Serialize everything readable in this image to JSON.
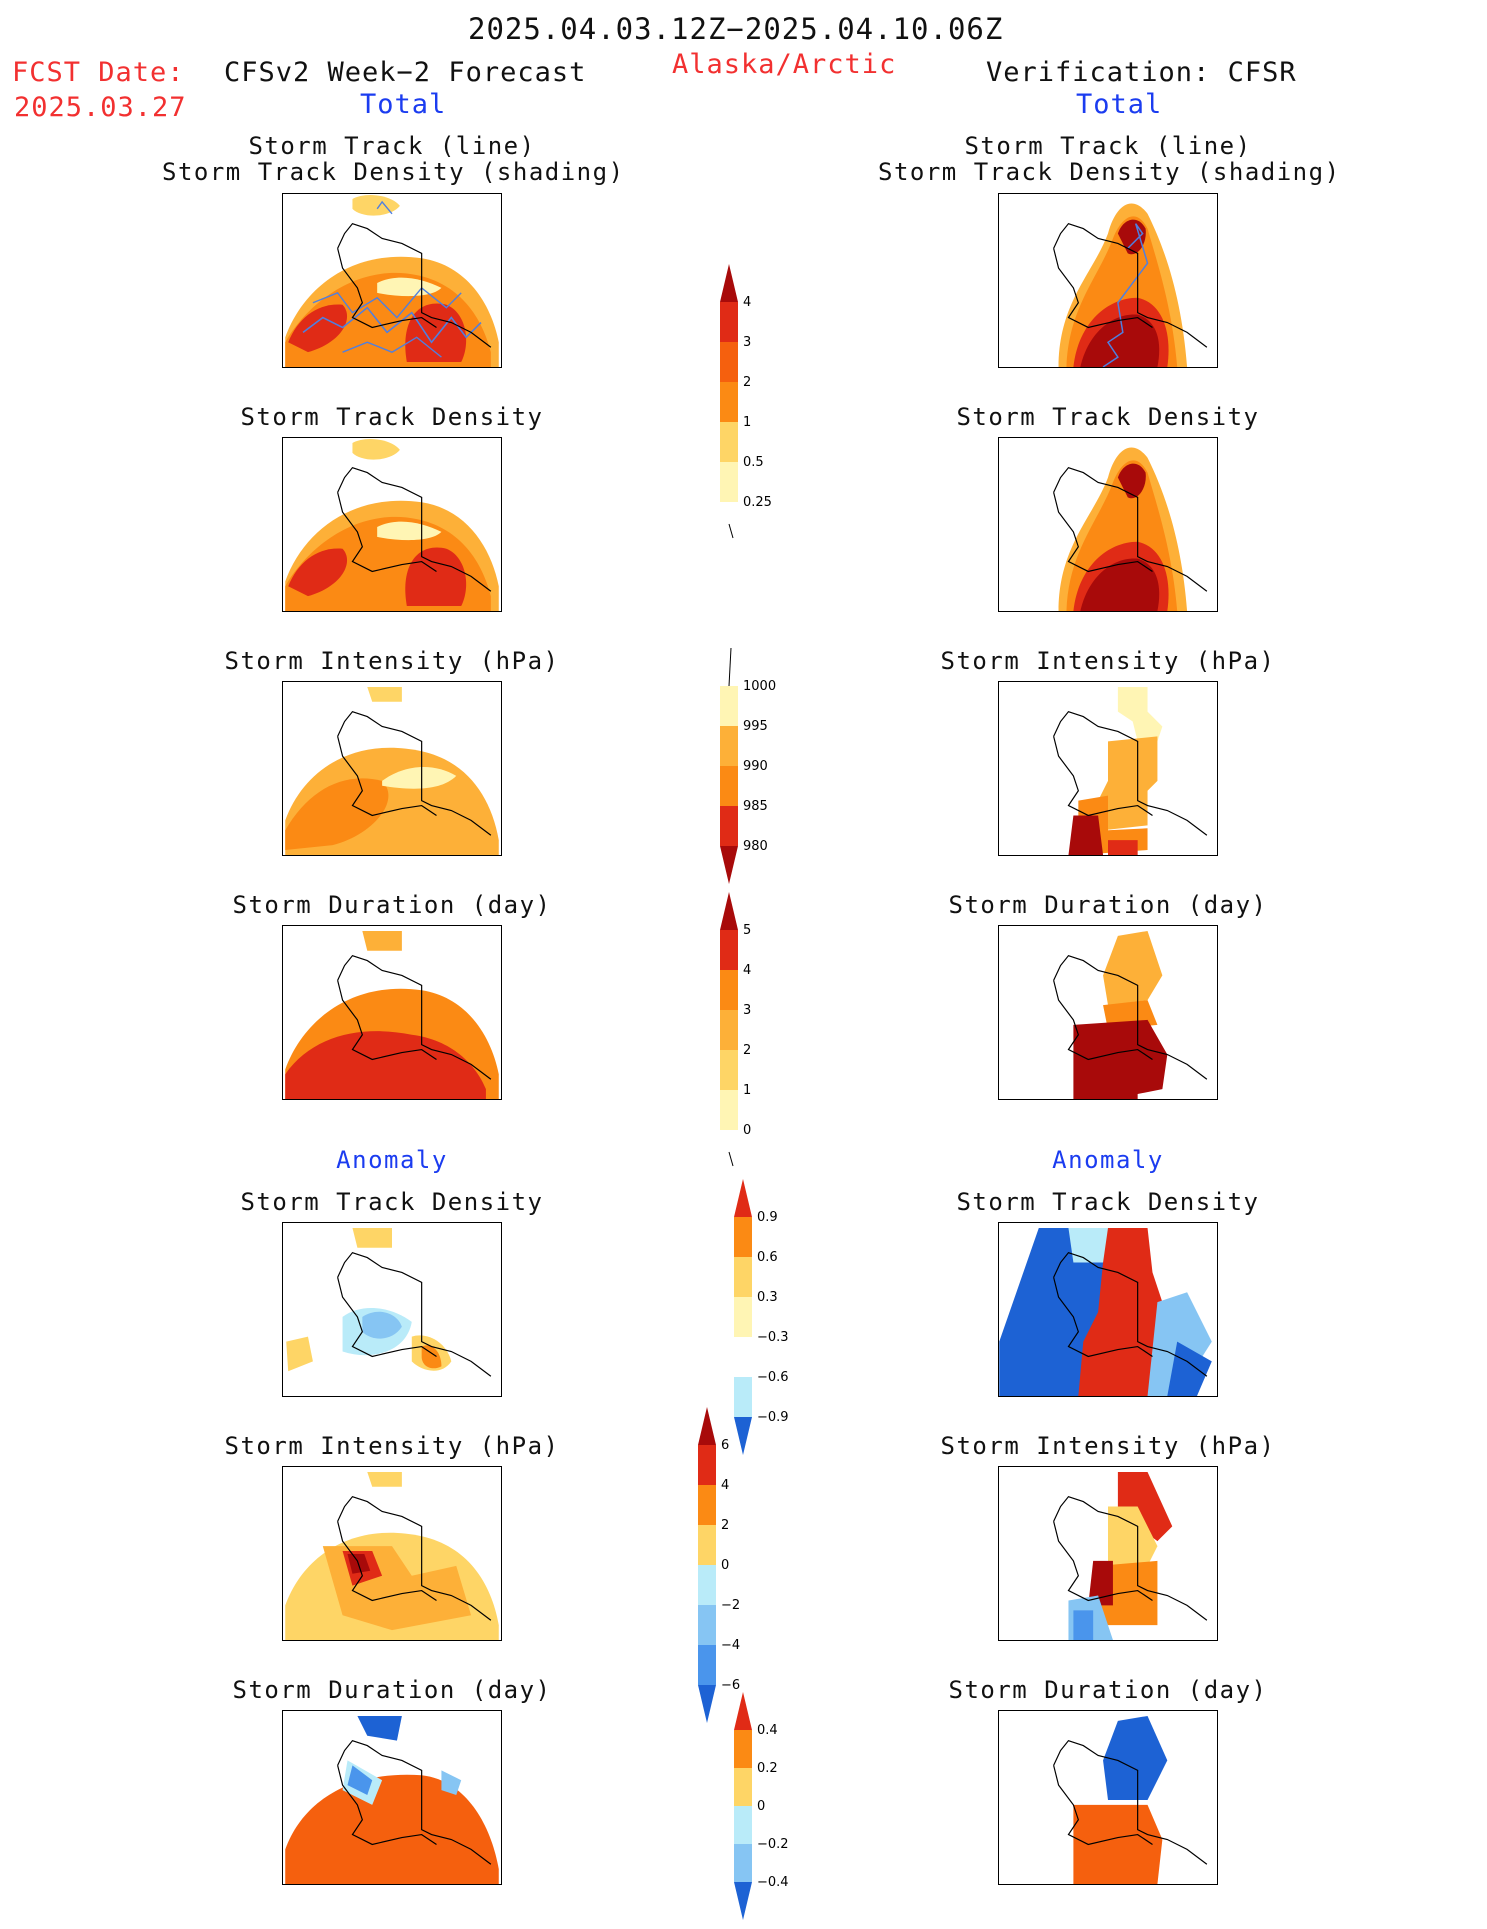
{
  "header": {
    "date_range": "2025.04.03.12Z−2025.04.10.06Z",
    "fcst_label": "FCST Date:",
    "fcst_date": "2025.03.27",
    "forecast_title": "CFSv2 Week−2 Forecast",
    "region": "Alaska/Arctic",
    "verification_title": "Verification: CFSR",
    "left_total": "Total",
    "right_total": "Total",
    "left_anomaly": "Anomaly",
    "right_anomaly": "Anomaly"
  },
  "panels": {
    "storm_track_line": "Storm Track (line)",
    "storm_track_shading": "Storm Track Density (shading)",
    "track_density": "Storm Track Density",
    "intensity": "Storm Intensity (hPa)",
    "duration": "Storm Duration (day)"
  },
  "colorbars": {
    "track_density_total": [
      "4",
      "3",
      "2",
      "1",
      "0.5",
      "0.25"
    ],
    "intensity_total": [
      "1000",
      "995",
      "990",
      "985",
      "980"
    ],
    "duration_total": [
      "5",
      "4",
      "3",
      "2",
      "1",
      "0"
    ],
    "track_density_anomaly": [
      "0.9",
      "0.6",
      "0.3",
      "−0.3",
      "−0.6",
      "−0.9"
    ],
    "intensity_anomaly": [
      "6",
      "4",
      "2",
      "0",
      "−2",
      "−4",
      "−6"
    ],
    "duration_anomaly": [
      "0.4",
      "0.2",
      "0",
      "−0.2",
      "−0.4"
    ]
  },
  "colors": {
    "yellow_light": "#fff5b4",
    "yellow": "#fed566",
    "orange_light": "#fdb038",
    "orange": "#fb8a14",
    "orange_red": "#f5600e",
    "red": "#e02b16",
    "dark_red": "#a80a0a",
    "blue_light": "#b9ebf9",
    "blue_mid": "#86c5f3",
    "blue": "#4a95ec",
    "blue_dark": "#1d62d4",
    "track_line": "#4f7fe0"
  }
}
